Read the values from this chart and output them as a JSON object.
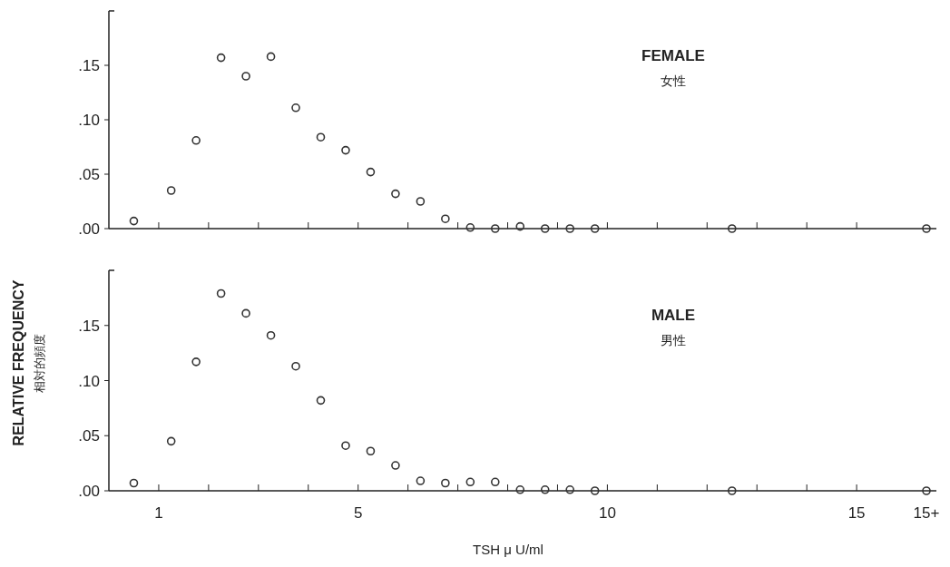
{
  "chart_data": [
    {
      "type": "scatter",
      "ylabel": "RELATIVE FREQUENCY\n相対的頻度",
      "annotations": [
        "FEMALE",
        "女性"
      ],
      "marker": "circle",
      "tick_labels": "y",
      "xlim": [
        0,
        16.6
      ],
      "ylim": [
        0,
        0.2
      ],
      "xticks": [
        {
          "value": 1,
          "label": null
        },
        {
          "value": 2,
          "label": null
        },
        {
          "value": 3,
          "label": null
        },
        {
          "value": 4,
          "label": null
        },
        {
          "value": 5,
          "label": null
        },
        {
          "value": 6,
          "label": null
        },
        {
          "value": 7,
          "label": null
        },
        {
          "value": 8,
          "label": null
        },
        {
          "value": 9,
          "label": null
        },
        {
          "value": 10,
          "label": null
        },
        {
          "value": 11,
          "label": null
        },
        {
          "value": 12,
          "label": null
        },
        {
          "value": 13,
          "label": null
        },
        {
          "value": 14,
          "label": null
        },
        {
          "value": 15,
          "label": null
        }
      ],
      "yticks": [
        {
          "value": 0,
          "label": ".00"
        },
        {
          "value": 0.05,
          "label": ".05"
        },
        {
          "value": 0.1,
          "label": ".10"
        },
        {
          "value": 0.15,
          "label": ".15"
        }
      ],
      "series": [
        {
          "color": "#333333",
          "x": [
            0.5,
            1.25,
            1.75,
            2.25,
            2.75,
            3.25,
            3.75,
            4.25,
            4.75,
            5.25,
            5.75,
            6.25,
            6.75,
            7.25,
            7.75,
            8.25,
            8.75,
            9.25,
            9.75,
            12.5,
            16.4
          ],
          "values": [
            0.007,
            0.035,
            0.081,
            0.157,
            0.14,
            0.158,
            0.111,
            0.084,
            0.072,
            0.052,
            0.032,
            0.025,
            0.009,
            0.001,
            0,
            0.002,
            0,
            0,
            0,
            0,
            0
          ]
        }
      ]
    },
    {
      "type": "scatter",
      "xlabel": "TSH μ U/ml",
      "annotations": [
        "MALE",
        "男性"
      ],
      "marker": "circle",
      "xlim": [
        0,
        16.6
      ],
      "ylim": [
        0,
        0.2
      ],
      "xticks": [
        {
          "value": 1,
          "label": "1"
        },
        {
          "value": 2,
          "label": null
        },
        {
          "value": 3,
          "label": null
        },
        {
          "value": 4,
          "label": null
        },
        {
          "value": 5,
          "label": "5"
        },
        {
          "value": 6,
          "label": null
        },
        {
          "value": 7,
          "label": null
        },
        {
          "value": 8,
          "label": null
        },
        {
          "value": 9,
          "label": null
        },
        {
          "value": 10,
          "label": "10"
        },
        {
          "value": 11,
          "label": null
        },
        {
          "value": 12,
          "label": null
        },
        {
          "value": 13,
          "label": null
        },
        {
          "value": 14,
          "label": null
        },
        {
          "value": 15,
          "label": "15"
        },
        {
          "value": 16.4,
          "label": "15+"
        }
      ],
      "yticks": [
        {
          "value": 0,
          "label": ".00"
        },
        {
          "value": 0.05,
          "label": ".05"
        },
        {
          "value": 0.1,
          "label": ".10"
        },
        {
          "value": 0.15,
          "label": ".15"
        }
      ],
      "series": [
        {
          "color": "#333333",
          "x": [
            0.5,
            1.25,
            1.75,
            2.25,
            2.75,
            3.25,
            3.75,
            4.25,
            4.75,
            5.25,
            5.75,
            6.25,
            6.75,
            7.25,
            7.75,
            8.25,
            8.75,
            9.25,
            9.75,
            12.5,
            16.4
          ],
          "values": [
            0.007,
            0.045,
            0.117,
            0.179,
            0.161,
            0.141,
            0.113,
            0.082,
            0.041,
            0.036,
            0.023,
            0.009,
            0.007,
            0.008,
            0.008,
            0.001,
            0.001,
            0.001,
            0,
            0,
            0
          ]
        }
      ]
    }
  ]
}
